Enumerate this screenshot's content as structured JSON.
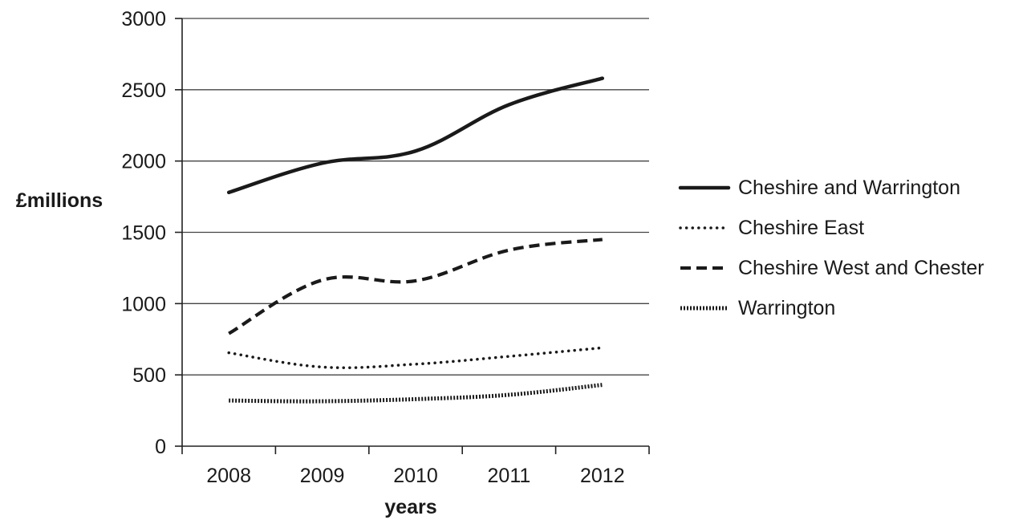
{
  "chart_data": {
    "type": "line",
    "title": "",
    "xlabel": "years",
    "ylabel": "£millions",
    "categories": [
      "2008",
      "2009",
      "2010",
      "2011",
      "2012"
    ],
    "ylim": [
      0,
      3000
    ],
    "yticks": [
      "0",
      "500",
      "1000",
      "1500",
      "2000",
      "2500",
      "3000"
    ],
    "grid": "horizontal",
    "legend_position": "right",
    "series": [
      {
        "name": "Cheshire and Warrington",
        "style": "solid",
        "color": "#1a1a1a",
        "values": [
          1780,
          1985,
          2070,
          2395,
          2580
        ]
      },
      {
        "name": "Cheshire East",
        "style": "dotted",
        "color": "#1a1a1a",
        "values": [
          655,
          555,
          575,
          630,
          690
        ]
      },
      {
        "name": "Cheshire West and Chester",
        "style": "dashed",
        "color": "#1a1a1a",
        "values": [
          790,
          1165,
          1160,
          1375,
          1450
        ]
      },
      {
        "name": "Warrington",
        "style": "fine-dotted",
        "color": "#1a1a1a",
        "values": [
          320,
          315,
          330,
          360,
          430
        ]
      }
    ]
  }
}
